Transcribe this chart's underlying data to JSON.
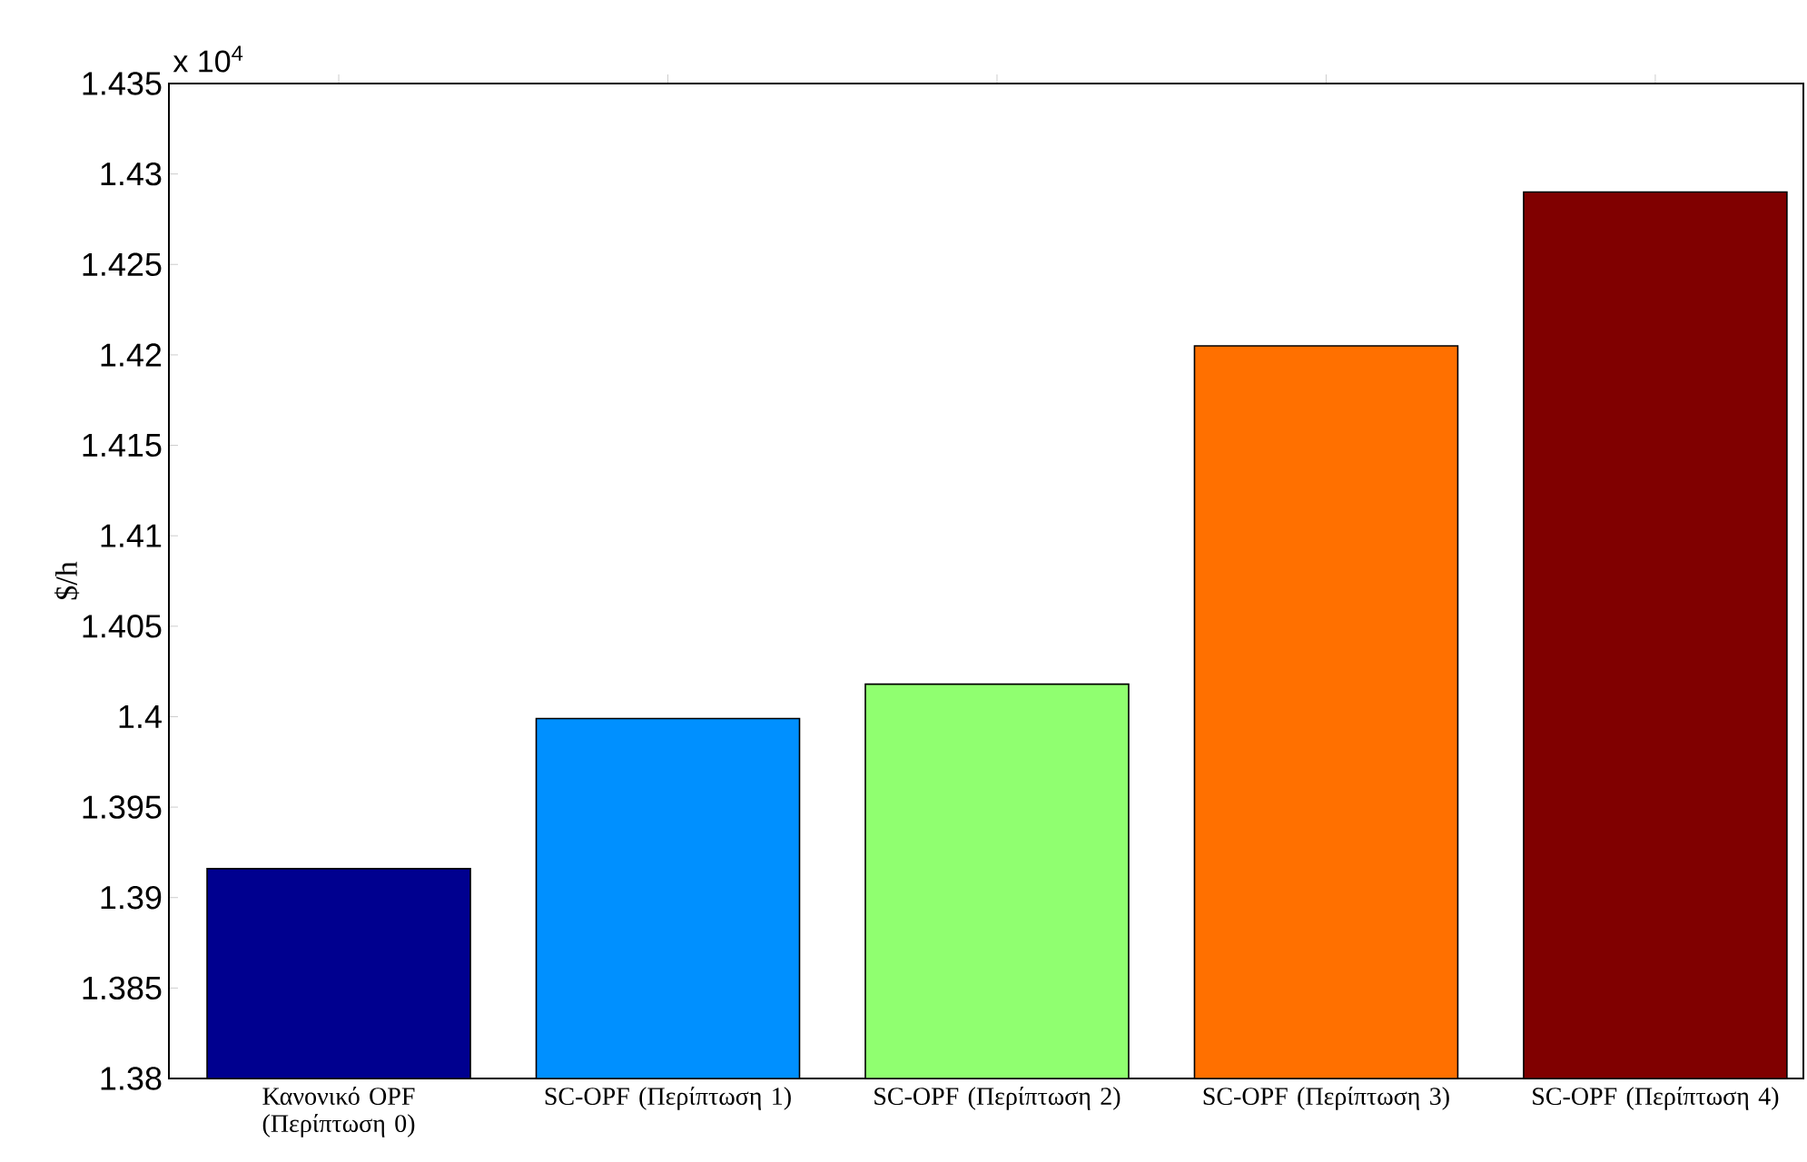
{
  "chart_data": {
    "type": "bar",
    "ylabel": "$/h",
    "categories": [
      "Κανονικό OPF (Περίπτωση 0)",
      "SC-OPF (Περίπτωση 1)",
      "SC-OPF (Περίπτωση 2)",
      "SC-OPF (Περίπτωση 3)",
      "SC-OPF (Περίπτωση 4)"
    ],
    "values": [
      1.3916,
      1.3999,
      1.4018,
      1.4205,
      1.429
    ],
    "colors": [
      "#00008f",
      "#0090ff",
      "#90ff70",
      "#ff7000",
      "#800000"
    ],
    "ylim": [
      1.38,
      1.435
    ],
    "yticks": [
      1.38,
      1.385,
      1.39,
      1.395,
      1.4,
      1.405,
      1.41,
      1.415,
      1.42,
      1.425,
      1.43,
      1.435
    ],
    "annotations": [
      "x 10$^{4}$"
    ]
  }
}
